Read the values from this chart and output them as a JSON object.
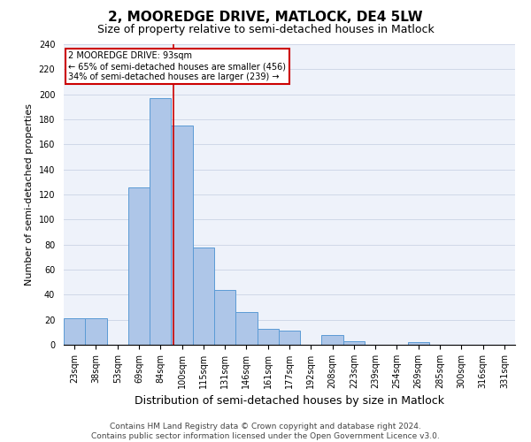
{
  "title": "2, MOOREDGE DRIVE, MATLOCK, DE4 5LW",
  "subtitle": "Size of property relative to semi-detached houses in Matlock",
  "xlabel": "Distribution of semi-detached houses by size in Matlock",
  "ylabel": "Number of semi-detached properties",
  "categories": [
    "23sqm",
    "38sqm",
    "53sqm",
    "69sqm",
    "84sqm",
    "100sqm",
    "115sqm",
    "131sqm",
    "146sqm",
    "161sqm",
    "177sqm",
    "192sqm",
    "208sqm",
    "223sqm",
    "239sqm",
    "254sqm",
    "269sqm",
    "285sqm",
    "300sqm",
    "316sqm",
    "331sqm"
  ],
  "values": [
    21,
    21,
    0,
    126,
    197,
    175,
    78,
    44,
    26,
    13,
    11,
    0,
    8,
    3,
    0,
    0,
    2,
    0,
    0,
    0,
    0
  ],
  "bar_color": "#aec6e8",
  "bar_edge_color": "#5b9bd5",
  "subject_line_color": "#cc0000",
  "annotation_text": "2 MOOREDGE DRIVE: 93sqm\n← 65% of semi-detached houses are smaller (456)\n34% of semi-detached houses are larger (239) →",
  "annotation_box_color": "#cc0000",
  "ylim": [
    0,
    240
  ],
  "yticks": [
    0,
    20,
    40,
    60,
    80,
    100,
    120,
    140,
    160,
    180,
    200,
    220,
    240
  ],
  "grid_color": "#d0d8e8",
  "background_color": "#eef2fa",
  "footer_line1": "Contains HM Land Registry data © Crown copyright and database right 2024.",
  "footer_line2": "Contains public sector information licensed under the Open Government Licence v3.0.",
  "title_fontsize": 11,
  "subtitle_fontsize": 9,
  "xlabel_fontsize": 9,
  "ylabel_fontsize": 8,
  "tick_fontsize": 7,
  "footer_fontsize": 6.5
}
